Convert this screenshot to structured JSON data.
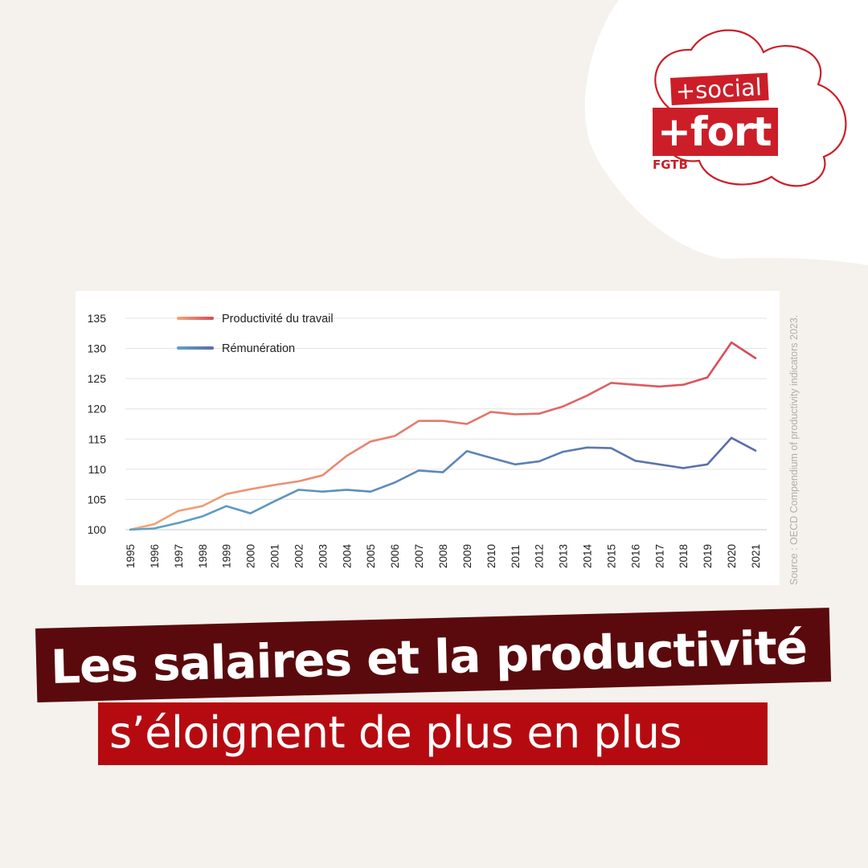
{
  "logo": {
    "social": "+social",
    "fort": "+fort",
    "brand": "FGTB",
    "color": "#cc1e28"
  },
  "headline": {
    "line1": "Les salaires et la productivité",
    "line2": "s’éloignent de plus en plus"
  },
  "source": "Source : OECD Compendium of productivity indicators 2023.",
  "chart_data": {
    "type": "line",
    "title": "",
    "xlabel": "",
    "ylabel": "",
    "ylim": [
      100,
      135
    ],
    "yticks": [
      100,
      105,
      110,
      115,
      120,
      125,
      130,
      135
    ],
    "grid": true,
    "legend_position": "top-left",
    "categories": [
      "1995",
      "1996",
      "1997",
      "1998",
      "1999",
      "2000",
      "2001",
      "2002",
      "2003",
      "2004",
      "2005",
      "2006",
      "2007",
      "2008",
      "2009",
      "2010",
      "2011",
      "2012",
      "2013",
      "2014",
      "2015",
      "2016",
      "2017",
      "2018",
      "2019",
      "2020",
      "2021"
    ],
    "series": [
      {
        "name": "Productivité du travail",
        "color_start": "#f0a77a",
        "color_end": "#d94a5a",
        "values": [
          100,
          100.9,
          103.1,
          103.9,
          105.9,
          106.7,
          107.4,
          108.0,
          109.0,
          112.2,
          114.6,
          115.5,
          118.0,
          118.0,
          117.5,
          119.5,
          119.1,
          119.2,
          120.4,
          122.2,
          124.3,
          124.0,
          123.7,
          124.0,
          125.2,
          131.0,
          128.4
        ]
      },
      {
        "name": "Rémunération",
        "color_start": "#5ea3c6",
        "color_end": "#5a6ba8",
        "values": [
          100,
          100.2,
          101.1,
          102.2,
          103.9,
          102.7,
          104.7,
          106.6,
          106.3,
          106.6,
          106.3,
          107.8,
          109.8,
          109.5,
          113.0,
          111.9,
          110.8,
          111.3,
          112.9,
          113.6,
          113.5,
          111.4,
          110.8,
          110.2,
          110.8,
          115.2,
          113.1
        ]
      }
    ]
  }
}
